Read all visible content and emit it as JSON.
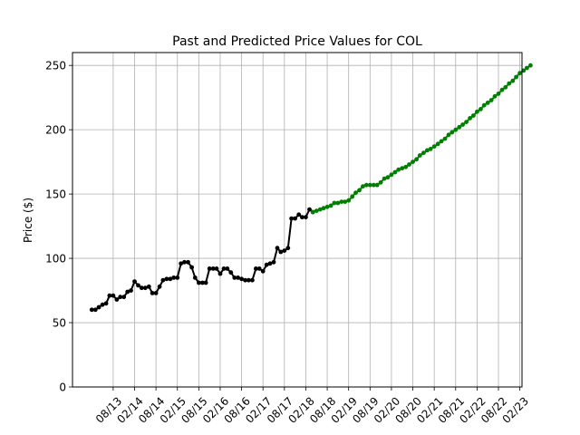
{
  "chart_data": {
    "type": "line",
    "title": "Past and Predicted Price Values for COL",
    "xlabel": "",
    "ylabel": "Price ($)",
    "ylim": [
      0,
      260
    ],
    "yticks": [
      0,
      50,
      100,
      150,
      200,
      250
    ],
    "xlim": [
      -0.9,
      20.1
    ],
    "xticks": [
      {
        "label": "08/13",
        "x": 1
      },
      {
        "label": "02/14",
        "x": 2
      },
      {
        "label": "08/14",
        "x": 3
      },
      {
        "label": "02/15",
        "x": 4
      },
      {
        "label": "08/15",
        "x": 5
      },
      {
        "label": "02/16",
        "x": 6
      },
      {
        "label": "08/16",
        "x": 7
      },
      {
        "label": "02/17",
        "x": 8
      },
      {
        "label": "08/17",
        "x": 9
      },
      {
        "label": "02/18",
        "x": 10
      },
      {
        "label": "08/18",
        "x": 11
      },
      {
        "label": "02/19",
        "x": 12
      },
      {
        "label": "08/19",
        "x": 13
      },
      {
        "label": "02/20",
        "x": 14
      },
      {
        "label": "08/20",
        "x": 15
      },
      {
        "label": "02/21",
        "x": 16
      },
      {
        "label": "08/21",
        "x": 17
      },
      {
        "label": "02/22",
        "x": 18
      },
      {
        "label": "08/22",
        "x": 19
      },
      {
        "label": "02/23",
        "x": 20
      }
    ],
    "grid": true,
    "series": [
      {
        "color": "#000000",
        "points": [
          [
            0.0,
            60
          ],
          [
            0.17,
            60
          ],
          [
            0.33,
            62
          ],
          [
            0.5,
            64
          ],
          [
            0.67,
            65
          ],
          [
            0.83,
            71
          ],
          [
            1.0,
            71
          ],
          [
            1.17,
            68
          ],
          [
            1.33,
            70
          ],
          [
            1.5,
            70
          ],
          [
            1.67,
            74
          ],
          [
            1.83,
            75
          ],
          [
            2.0,
            82
          ],
          [
            2.17,
            79
          ],
          [
            2.33,
            77
          ],
          [
            2.5,
            77
          ],
          [
            2.67,
            78
          ],
          [
            2.83,
            73
          ],
          [
            3.0,
            73
          ],
          [
            3.17,
            78
          ],
          [
            3.33,
            83
          ],
          [
            3.5,
            84
          ],
          [
            3.67,
            84
          ],
          [
            3.83,
            85
          ],
          [
            4.0,
            85
          ],
          [
            4.17,
            96
          ],
          [
            4.33,
            97
          ],
          [
            4.5,
            97
          ],
          [
            4.67,
            93
          ],
          [
            4.83,
            85
          ],
          [
            5.0,
            81
          ],
          [
            5.17,
            81
          ],
          [
            5.33,
            81
          ],
          [
            5.5,
            92
          ],
          [
            5.67,
            92
          ],
          [
            5.83,
            92
          ],
          [
            6.0,
            88
          ],
          [
            6.17,
            92
          ],
          [
            6.33,
            92
          ],
          [
            6.5,
            89
          ],
          [
            6.67,
            85
          ],
          [
            6.83,
            85
          ],
          [
            7.0,
            84
          ],
          [
            7.17,
            83
          ],
          [
            7.33,
            83
          ],
          [
            7.5,
            83
          ],
          [
            7.67,
            92
          ],
          [
            7.83,
            92
          ],
          [
            8.0,
            90
          ],
          [
            8.17,
            95
          ],
          [
            8.33,
            96
          ],
          [
            8.5,
            97
          ],
          [
            8.67,
            108
          ],
          [
            8.83,
            105
          ],
          [
            9.0,
            106
          ],
          [
            9.17,
            108
          ],
          [
            9.33,
            131
          ],
          [
            9.5,
            131
          ],
          [
            9.67,
            134
          ],
          [
            9.83,
            132
          ],
          [
            10.0,
            132
          ],
          [
            10.17,
            138
          ],
          [
            10.33,
            136
          ]
        ]
      },
      {
        "color": "#008000",
        "points": [
          [
            10.33,
            136
          ],
          [
            10.5,
            137
          ],
          [
            10.67,
            138
          ],
          [
            10.83,
            139
          ],
          [
            11.0,
            140
          ],
          [
            11.17,
            141
          ],
          [
            11.33,
            143
          ],
          [
            11.5,
            143
          ],
          [
            11.67,
            144
          ],
          [
            11.83,
            144
          ],
          [
            12.0,
            145
          ],
          [
            12.17,
            148
          ],
          [
            12.33,
            151
          ],
          [
            12.5,
            153
          ],
          [
            12.67,
            156
          ],
          [
            12.83,
            157
          ],
          [
            13.0,
            157
          ],
          [
            13.17,
            157
          ],
          [
            13.33,
            157
          ],
          [
            13.5,
            159
          ],
          [
            13.67,
            162
          ],
          [
            13.83,
            163
          ],
          [
            14.0,
            165
          ],
          [
            14.17,
            167
          ],
          [
            14.33,
            169
          ],
          [
            14.5,
            170
          ],
          [
            14.67,
            171
          ],
          [
            14.83,
            173
          ],
          [
            15.0,
            175
          ],
          [
            15.17,
            177
          ],
          [
            15.33,
            180
          ],
          [
            15.5,
            182
          ],
          [
            15.67,
            184
          ],
          [
            15.83,
            185
          ],
          [
            16.0,
            187
          ],
          [
            16.17,
            189
          ],
          [
            16.33,
            191
          ],
          [
            16.5,
            193
          ],
          [
            16.67,
            196
          ],
          [
            16.83,
            198
          ],
          [
            17.0,
            200
          ],
          [
            17.17,
            202
          ],
          [
            17.33,
            204
          ],
          [
            17.5,
            206
          ],
          [
            17.67,
            209
          ],
          [
            17.83,
            211
          ],
          [
            18.0,
            214
          ],
          [
            18.17,
            216
          ],
          [
            18.33,
            219
          ],
          [
            18.5,
            221
          ],
          [
            18.67,
            223
          ],
          [
            18.83,
            226
          ],
          [
            19.0,
            228
          ],
          [
            19.17,
            231
          ],
          [
            19.33,
            233
          ],
          [
            19.5,
            236
          ],
          [
            19.67,
            238
          ],
          [
            19.83,
            241
          ],
          [
            20.0,
            244
          ],
          [
            20.17,
            246
          ],
          [
            20.33,
            248
          ],
          [
            20.5,
            250
          ]
        ]
      }
    ]
  }
}
